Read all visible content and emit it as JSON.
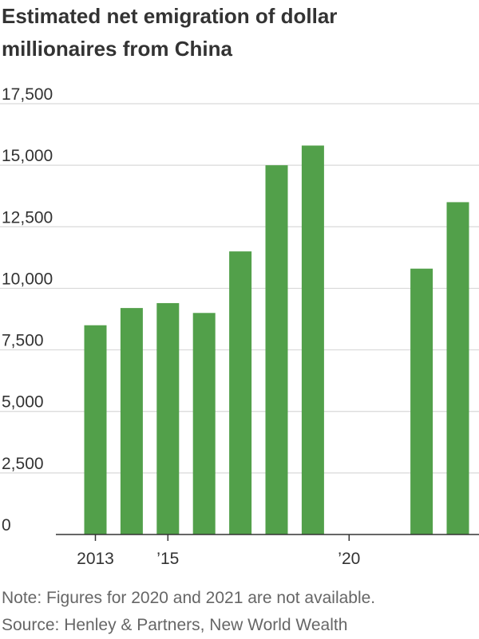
{
  "chart_data": {
    "type": "bar",
    "title": "Estimated net emigration of dollar millionaires from China",
    "xlabel": "",
    "ylabel": "",
    "categories": [
      "2013",
      "2014",
      "2015",
      "2016",
      "2017",
      "2018",
      "2019",
      "2020",
      "2021",
      "2022",
      "2023"
    ],
    "values": [
      8500,
      9200,
      9400,
      9000,
      11500,
      15000,
      15800,
      null,
      null,
      10800,
      13500
    ],
    "x_tick_labels": [
      {
        "category": "2013",
        "label": "2013"
      },
      {
        "category": "2015",
        "label": "’15"
      },
      {
        "category": "2020",
        "label": "’20"
      }
    ],
    "y_ticks": [
      {
        "value": 0,
        "label": "0"
      },
      {
        "value": 2500,
        "label": "2,500"
      },
      {
        "value": 5000,
        "label": "5,000"
      },
      {
        "value": 7500,
        "label": "7,500"
      },
      {
        "value": 10000,
        "label": "10,000"
      },
      {
        "value": 12500,
        "label": "12,500"
      },
      {
        "value": 15000,
        "label": "15,000"
      },
      {
        "value": 17500,
        "label": "17,500"
      }
    ],
    "ylim": [
      0,
      17500
    ],
    "grid": true,
    "legend": "none",
    "bar_color": "#52a04a",
    "grid_color": "#d9d9d9",
    "axis_color": "#333333"
  },
  "notes": {
    "note": "Note: Figures for 2020 and 2021 are not available.",
    "source": "Source: Henley & Partners, New World Wealth"
  }
}
